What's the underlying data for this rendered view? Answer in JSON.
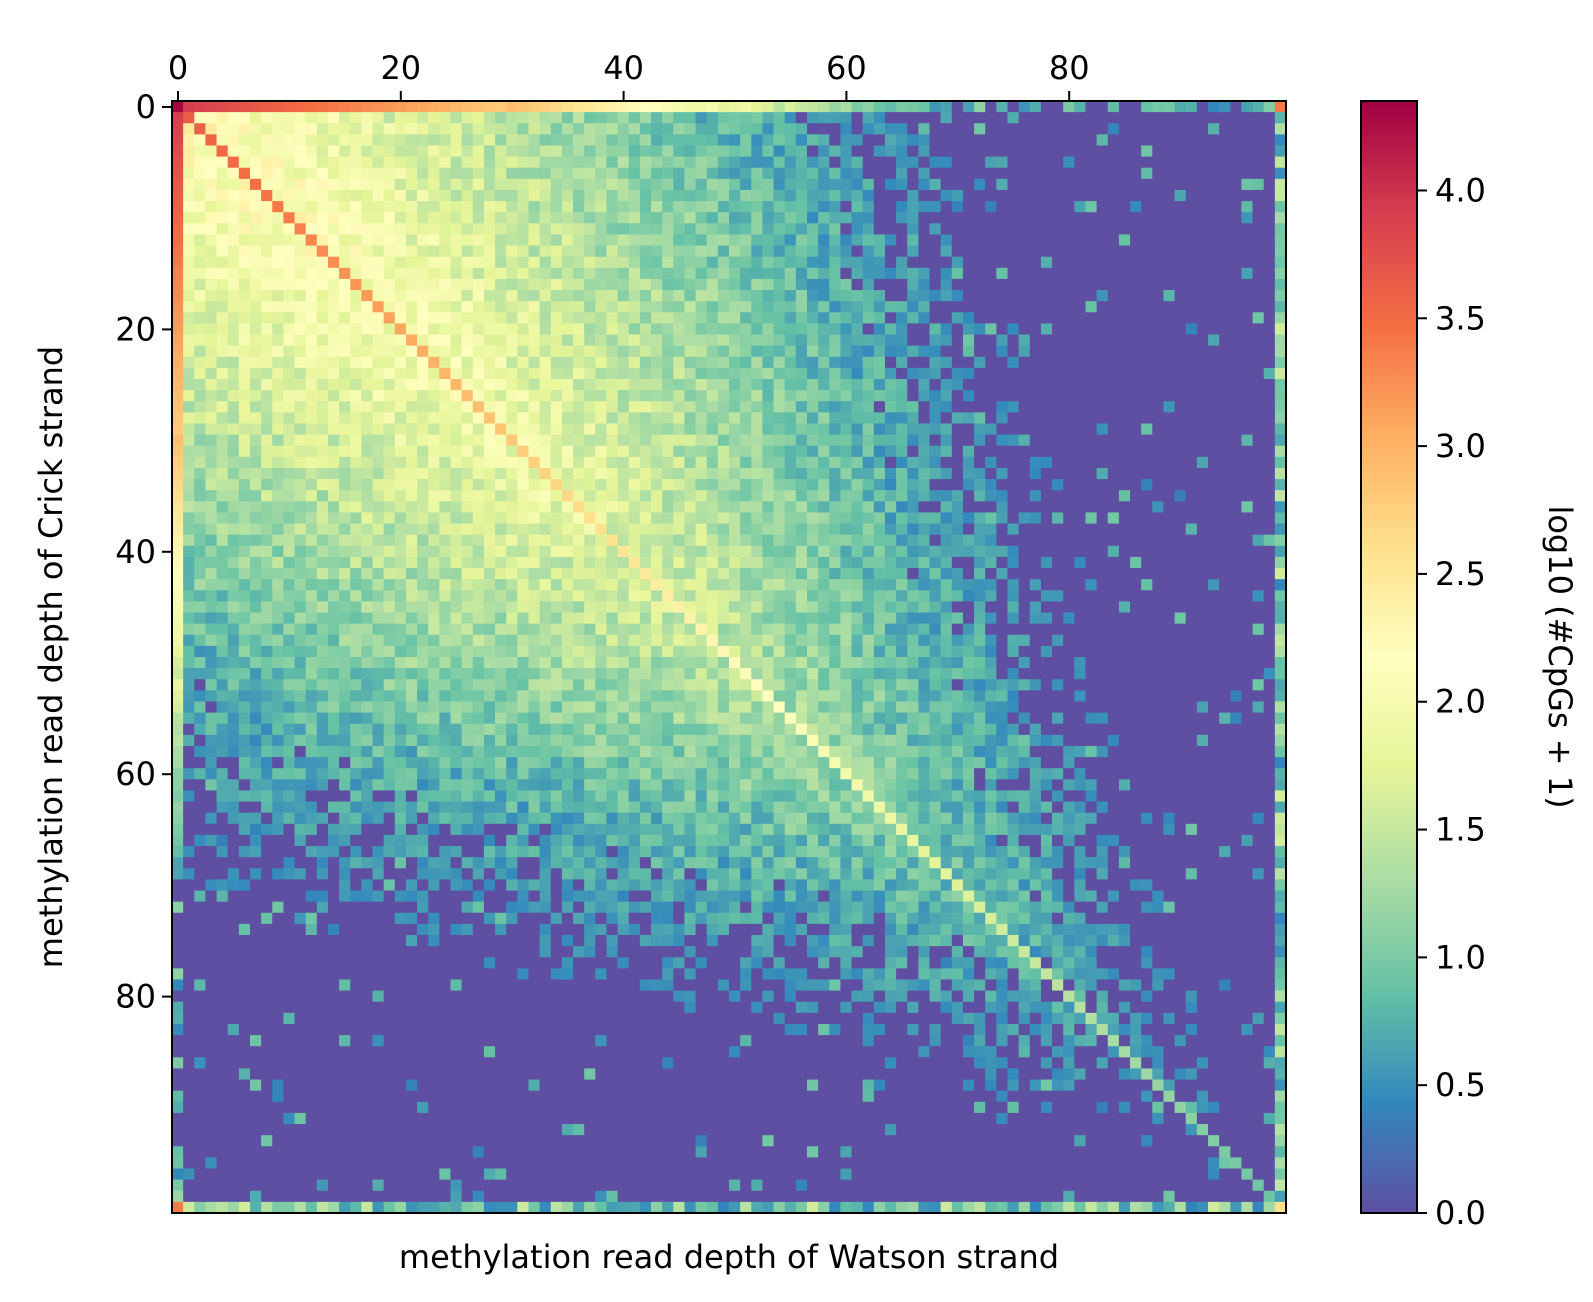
{
  "chart_data": {
    "type": "heatmap",
    "title": "",
    "xlabel": "methylation read depth of Watson strand",
    "ylabel": "methylation read depth of Crick strand",
    "colorbar_label": "log10 (#CpGs + 1)",
    "x_axis_position": "top",
    "xlim": [
      0,
      100
    ],
    "ylim": [
      100,
      0
    ],
    "grid": false,
    "x_ticks": [
      0,
      20,
      40,
      60,
      80
    ],
    "x_tick_labels": [
      "0",
      "20",
      "40",
      "60",
      "80"
    ],
    "y_ticks": [
      0,
      20,
      40,
      60,
      80
    ],
    "y_tick_labels": [
      "0",
      "20",
      "40",
      "60",
      "80"
    ],
    "colorbar_range": [
      0,
      4.35
    ],
    "colorbar_ticks": [
      0.0,
      0.5,
      1.0,
      1.5,
      2.0,
      2.5,
      3.0,
      3.5,
      4.0
    ],
    "colorbar_tick_labels": [
      "0.0",
      "0.5",
      "1.0",
      "1.5",
      "2.0",
      "2.5",
      "3.0",
      "3.5",
      "4.0"
    ],
    "colormap": "Spectral_r",
    "colormap_stops": [
      "#5e4fa2",
      "#3288bd",
      "#66c2a5",
      "#abdda4",
      "#e6f598",
      "#ffffbf",
      "#fee08b",
      "#fdae61",
      "#f46d43",
      "#d53e4f",
      "#9e0142"
    ],
    "grid_size": 100,
    "description_of_values": "Matrix values estimated: corner cell (0,0) ~4.3; row/column 0 ~3.3-4.0; diagonal ~3.6 falling to ~1.0 near depth 100; central band ~2.0-2.3 decaying with distance; background 0.0 beyond depth ~65-75; last row/column (depth 99+) ~0.5-2.5",
    "values_peak": {
      "corner": 4.3,
      "diagonal_start": 3.6,
      "diagonal_end": 1.0,
      "central_band": 2.1
    }
  }
}
